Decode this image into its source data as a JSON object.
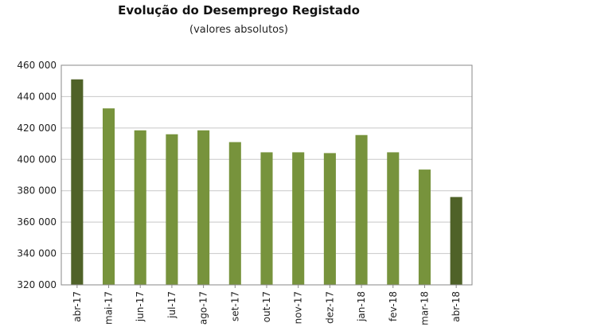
{
  "chart_data": {
    "type": "bar",
    "title": "Evolução do Desemprego Registado",
    "subtitle": "(valores absolutos)",
    "categories": [
      "abr-17",
      "mai-17",
      "jun-17",
      "jul-17",
      "ago-17",
      "set-17",
      "out-17",
      "nov-17",
      "dez-17",
      "jan-18",
      "fev-18",
      "mar-18",
      "abr-18"
    ],
    "values": [
      451000,
      432500,
      418500,
      416000,
      418500,
      411000,
      404500,
      404500,
      404000,
      415500,
      404500,
      393500,
      376000
    ],
    "ylim": [
      320000,
      460000
    ],
    "yticks": [
      320000,
      340000,
      360000,
      380000,
      400000,
      420000,
      440000,
      460000
    ],
    "ytick_labels": [
      "320 000",
      "340 000",
      "360 000",
      "380 000",
      "400 000",
      "420 000",
      "440 000",
      "460 000"
    ],
    "grid": true,
    "colors": {
      "bar": "#77933C",
      "highlight": "#4F6228",
      "grid": "#C8C8C8",
      "axis": "#888888"
    },
    "highlight_indices": [
      0,
      12
    ]
  }
}
